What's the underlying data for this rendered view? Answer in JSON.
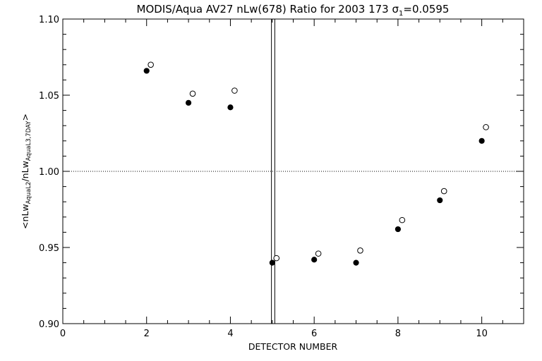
{
  "chart_data": {
    "type": "scatter",
    "title_main": "MODIS/Aqua AV27 nLw(678) Ratio for 2003 173 ",
    "title_sigma": "σ",
    "title_sigma_sub": "1",
    "title_sigma_value": "=0.0595",
    "xlabel": "DETECTOR NUMBER",
    "ylabel_parts": {
      "open": "<nLw",
      "sub1": "AquaL2",
      "mid": "/nLw",
      "sub2": "AquaL3,7DAY",
      "close": ">"
    },
    "xlim": [
      0,
      11
    ],
    "ylim": [
      0.9,
      1.1
    ],
    "x_ticks": [
      0,
      2,
      4,
      6,
      8,
      10
    ],
    "x_tick_labels": [
      "0",
      "2",
      "4",
      "6",
      "8",
      "10"
    ],
    "y_ticks": [
      0.9,
      0.95,
      1.0,
      1.05,
      1.1
    ],
    "y_tick_labels": [
      "0.90",
      "0.95",
      "1.00",
      "1.05",
      "1.10"
    ],
    "reference_line_y": 1.0,
    "vertical_lines_x": [
      4.98,
      5.06
    ],
    "series": [
      {
        "marker": "filled-circle",
        "x": [
          2,
          3,
          4,
          5,
          6,
          7,
          8,
          9,
          10
        ],
        "y": [
          1.066,
          1.045,
          1.042,
          0.94,
          0.942,
          0.94,
          0.962,
          0.981,
          1.02
        ]
      },
      {
        "marker": "open-circle",
        "x": [
          2.1,
          3.1,
          4.1,
          5.1,
          6.1,
          7.1,
          8.1,
          9.1,
          10.1
        ],
        "y": [
          1.07,
          1.051,
          1.053,
          0.943,
          0.946,
          0.948,
          0.968,
          0.987,
          1.029
        ]
      }
    ],
    "grid": false,
    "legend": "none"
  }
}
